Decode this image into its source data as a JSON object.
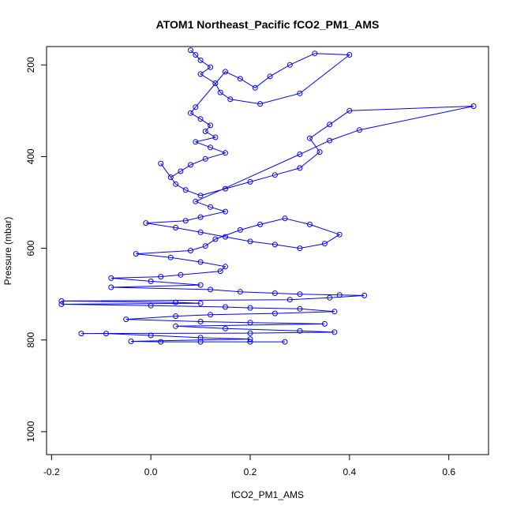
{
  "chart_data": {
    "type": "scatter",
    "title": "ATOM1 Northeast_Pacific fCO2_PM1_AMS",
    "xlabel": "fCO2_PM1_AMS",
    "ylabel": "Pressure (mbar)",
    "xlim": [
      -0.21,
      0.68
    ],
    "ylim": [
      1050,
      160
    ],
    "y_reversed": true,
    "x_ticks": [
      -0.2,
      0.0,
      0.2,
      0.4,
      0.6
    ],
    "x_tick_labels": [
      "-0.2",
      "0.0",
      "0.2",
      "0.4",
      "0.6"
    ],
    "y_ticks": [
      200,
      400,
      600,
      800,
      1000
    ],
    "y_tick_labels": [
      "200",
      "400",
      "600",
      "800",
      "1000"
    ],
    "grid": false,
    "legend": "none",
    "marker": "open-circle",
    "connect_points": true,
    "series": [
      {
        "color": "#0000ff",
        "points": [
          [
            0.08,
            168
          ],
          [
            0.09,
            178
          ],
          [
            0.1,
            190
          ],
          [
            0.12,
            205
          ],
          [
            0.1,
            220
          ],
          [
            0.13,
            240
          ],
          [
            0.14,
            260
          ],
          [
            0.16,
            275
          ],
          [
            0.22,
            285
          ],
          [
            0.3,
            262
          ],
          [
            0.4,
            178
          ],
          [
            0.33,
            175
          ],
          [
            0.28,
            200
          ],
          [
            0.24,
            225
          ],
          [
            0.21,
            250
          ],
          [
            0.18,
            230
          ],
          [
            0.15,
            215
          ],
          [
            0.09,
            292
          ],
          [
            0.08,
            305
          ],
          [
            0.1,
            318
          ],
          [
            0.12,
            332
          ],
          [
            0.11,
            345
          ],
          [
            0.13,
            358
          ],
          [
            0.09,
            368
          ],
          [
            0.12,
            380
          ],
          [
            0.15,
            392
          ],
          [
            0.11,
            405
          ],
          [
            0.08,
            418
          ],
          [
            0.06,
            432
          ],
          [
            0.04,
            445
          ],
          [
            0.02,
            415
          ],
          [
            0.05,
            460
          ],
          [
            0.07,
            473
          ],
          [
            0.1,
            485
          ],
          [
            0.15,
            470
          ],
          [
            0.2,
            455
          ],
          [
            0.25,
            440
          ],
          [
            0.3,
            425
          ],
          [
            0.34,
            390
          ],
          [
            0.32,
            360
          ],
          [
            0.36,
            330
          ],
          [
            0.4,
            300
          ],
          [
            0.65,
            290
          ],
          [
            0.42,
            342
          ],
          [
            0.36,
            365
          ],
          [
            0.3,
            395
          ],
          [
            0.09,
            498
          ],
          [
            0.12,
            510
          ],
          [
            0.15,
            520
          ],
          [
            0.1,
            532
          ],
          [
            0.07,
            540
          ],
          [
            -0.01,
            545
          ],
          [
            0.05,
            555
          ],
          [
            0.1,
            565
          ],
          [
            0.15,
            575
          ],
          [
            0.2,
            585
          ],
          [
            0.25,
            592
          ],
          [
            0.3,
            600
          ],
          [
            0.35,
            590
          ],
          [
            0.38,
            570
          ],
          [
            0.32,
            548
          ],
          [
            0.27,
            535
          ],
          [
            0.22,
            548
          ],
          [
            0.18,
            560
          ],
          [
            0.13,
            580
          ],
          [
            0.11,
            595
          ],
          [
            0.08,
            605
          ],
          [
            -0.03,
            612
          ],
          [
            0.04,
            620
          ],
          [
            0.1,
            630
          ],
          [
            0.15,
            640
          ],
          [
            0.14,
            650
          ],
          [
            0.06,
            658
          ],
          [
            0.02,
            662
          ],
          [
            -0.08,
            665
          ],
          [
            0.0,
            672
          ],
          [
            0.1,
            680
          ],
          [
            -0.08,
            685
          ],
          [
            0.12,
            690
          ],
          [
            0.18,
            695
          ],
          [
            0.25,
            698
          ],
          [
            0.3,
            700
          ],
          [
            0.38,
            702
          ],
          [
            0.43,
            703
          ],
          [
            0.36,
            708
          ],
          [
            0.28,
            712
          ],
          [
            -0.18,
            715
          ],
          [
            0.05,
            718
          ],
          [
            0.1,
            720
          ],
          [
            -0.18,
            722
          ],
          [
            0.0,
            725
          ],
          [
            0.15,
            728
          ],
          [
            0.2,
            730
          ],
          [
            0.3,
            732
          ],
          [
            0.37,
            738
          ],
          [
            0.25,
            742
          ],
          [
            0.12,
            745
          ],
          [
            0.05,
            748
          ],
          [
            -0.05,
            755
          ],
          [
            0.1,
            760
          ],
          [
            0.2,
            762
          ],
          [
            0.35,
            765
          ],
          [
            0.05,
            770
          ],
          [
            0.15,
            775
          ],
          [
            0.3,
            780
          ],
          [
            0.37,
            783
          ],
          [
            0.2,
            785
          ],
          [
            -0.14,
            786
          ],
          [
            -0.09,
            786
          ],
          [
            0.0,
            790
          ],
          [
            0.1,
            795
          ],
          [
            0.2,
            798
          ],
          [
            -0.04,
            803
          ],
          [
            0.02,
            804
          ],
          [
            0.1,
            804
          ],
          [
            0.2,
            804
          ],
          [
            0.27,
            804
          ]
        ]
      }
    ]
  }
}
